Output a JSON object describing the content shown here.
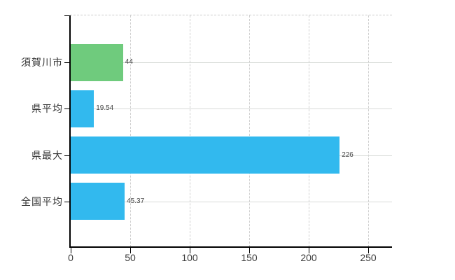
{
  "chart_data": {
    "type": "bar",
    "orientation": "horizontal",
    "categories": [
      "須賀川市",
      "県平均",
      "県最大",
      "全国平均"
    ],
    "values": [
      44,
      19.54,
      226,
      45.37
    ],
    "value_labels": [
      "44",
      "19.54",
      "226",
      "45.37"
    ],
    "bar_colors": [
      "#6fcb7d",
      "#32b9ee",
      "#32b9ee",
      "#32b9ee"
    ],
    "x_ticks": [
      0,
      50,
      100,
      150,
      200,
      250
    ],
    "x_tick_labels": [
      "0",
      "50",
      "100",
      "150",
      "200",
      "250"
    ],
    "xlim": [
      0,
      269
    ],
    "grid": true,
    "legend": false,
    "title": "",
    "xlabel": "",
    "ylabel": ""
  },
  "colors": {
    "background": "#ffffff",
    "axis": "#000000",
    "horizontal_gridline": "#d8dbd8",
    "vertical_gridline_dashed": "#cfcfcf",
    "category_label_text": "#333333",
    "value_label_text": "#454545",
    "tick_label_text": "#3c3c3c",
    "bar_green": "#6fcb7d",
    "bar_blue": "#32b9ee"
  }
}
